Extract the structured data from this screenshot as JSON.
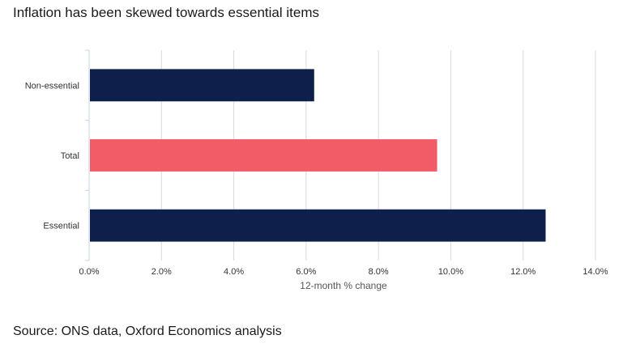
{
  "chart_data": {
    "type": "bar",
    "orientation": "horizontal",
    "title": "Inflation has been skewed towards essential items",
    "source": "Source: ONS data, Oxford Economics analysis",
    "xlabel": "12-month % change",
    "ylabel": "",
    "categories": [
      "Non-essential",
      "Total",
      "Essential"
    ],
    "values": [
      6.2,
      9.6,
      12.6
    ],
    "bar_colors": [
      "#0d1f4a",
      "#f25c66",
      "#0d1f4a"
    ],
    "xlim": [
      0,
      14
    ],
    "x_ticks": [
      0,
      2,
      4,
      6,
      8,
      10,
      12,
      14
    ],
    "x_tick_labels": [
      "0.0%",
      "2.0%",
      "4.0%",
      "6.0%",
      "8.0%",
      "10.0%",
      "12.0%",
      "14.0%"
    ],
    "grid": true,
    "legend": "none"
  }
}
